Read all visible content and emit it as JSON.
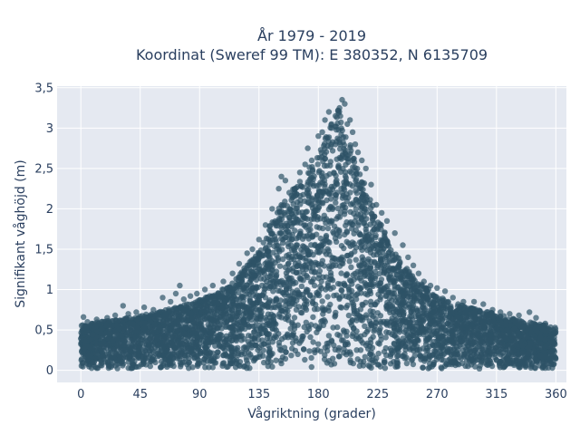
{
  "chart_data": {
    "type": "scatter",
    "title": [
      "År 1979 - 2019",
      "Koordinat (Sweref 99 TM): E 380352, N 6135709"
    ],
    "xlabel": "Vågriktning (grader)",
    "ylabel": "Signifikant våghöjd (m)",
    "xlim": [
      -18,
      368
    ],
    "ylim": [
      -0.15,
      3.52
    ],
    "xticks": [
      0,
      45,
      90,
      135,
      180,
      225,
      270,
      315,
      360
    ],
    "xtick_labels": [
      "0",
      "45",
      "90",
      "135",
      "180",
      "225",
      "270",
      "315",
      "360"
    ],
    "yticks": [
      0,
      0.5,
      1,
      1.5,
      2,
      2.5,
      3,
      3.5
    ],
    "ytick_labels": [
      "0",
      "0,5",
      "1",
      "1,5",
      "2",
      "2,5",
      "3",
      "3,5"
    ],
    "grid": true,
    "legend": "none",
    "series": [
      {
        "color": "#2e5266",
        "envelope": {
          "direction_deg": [
            0,
            15,
            30,
            45,
            60,
            75,
            90,
            105,
            120,
            135,
            150,
            165,
            180,
            195,
            210,
            225,
            240,
            255,
            270,
            285,
            300,
            315,
            330,
            345,
            360
          ],
          "max_height_m": [
            0.58,
            0.62,
            0.66,
            0.7,
            0.75,
            0.82,
            0.9,
            1.0,
            1.22,
            1.55,
            2.1,
            2.4,
            2.75,
            3.35,
            2.6,
            1.95,
            1.45,
            1.15,
            0.95,
            0.85,
            0.78,
            0.72,
            0.65,
            0.6,
            0.55
          ],
          "min_height_m": [
            0.02,
            0.02,
            0.02,
            0.02,
            0.02,
            0.02,
            0.02,
            0.02,
            0.02,
            0.02,
            0.02,
            0.02,
            0.02,
            0.02,
            0.02,
            0.02,
            0.02,
            0.02,
            0.02,
            0.02,
            0.02,
            0.02,
            0.02,
            0.02,
            0.02
          ]
        },
        "points": [
          [
            2,
            0.66
          ],
          [
            5,
            0.6
          ],
          [
            12,
            0.63
          ],
          [
            20,
            0.65
          ],
          [
            26,
            0.68
          ],
          [
            32,
            0.8
          ],
          [
            36,
            0.7
          ],
          [
            42,
            0.72
          ],
          [
            48,
            0.78
          ],
          [
            55,
            0.75
          ],
          [
            62,
            0.9
          ],
          [
            68,
            0.85
          ],
          [
            72,
            0.95
          ],
          [
            75,
            1.05
          ],
          [
            78,
            0.88
          ],
          [
            83,
            0.92
          ],
          [
            88,
            0.95
          ],
          [
            94,
            1.0
          ],
          [
            100,
            1.05
          ],
          [
            108,
            1.1
          ],
          [
            115,
            1.2
          ],
          [
            120,
            1.32
          ],
          [
            126,
            1.45
          ],
          [
            130,
            1.5
          ],
          [
            135,
            1.62
          ],
          [
            140,
            1.8
          ],
          [
            145,
            2.0
          ],
          [
            150,
            2.25
          ],
          [
            152,
            2.4
          ],
          [
            155,
            2.35
          ],
          [
            158,
            2.2
          ],
          [
            162,
            2.25
          ],
          [
            166,
            2.45
          ],
          [
            170,
            2.55
          ],
          [
            172,
            2.75
          ],
          [
            175,
            2.6
          ],
          [
            180,
            2.9
          ],
          [
            183,
            2.95
          ],
          [
            185,
            3.1
          ],
          [
            188,
            3.2
          ],
          [
            190,
            3.0
          ],
          [
            193,
            3.15
          ],
          [
            196,
            3.25
          ],
          [
            198,
            3.35
          ],
          [
            200,
            3.3
          ],
          [
            202,
            3.05
          ],
          [
            204,
            3.1
          ],
          [
            206,
            2.95
          ],
          [
            208,
            2.8
          ],
          [
            210,
            2.7
          ],
          [
            213,
            2.6
          ],
          [
            216,
            2.5
          ],
          [
            220,
            2.3
          ],
          [
            224,
            2.05
          ],
          [
            228,
            1.95
          ],
          [
            232,
            1.85
          ],
          [
            238,
            1.7
          ],
          [
            244,
            1.55
          ],
          [
            248,
            1.4
          ],
          [
            252,
            1.3
          ],
          [
            256,
            1.2
          ],
          [
            260,
            1.1
          ],
          [
            265,
            1.05
          ],
          [
            270,
            1.02
          ],
          [
            276,
            0.98
          ],
          [
            282,
            0.9
          ],
          [
            290,
            0.85
          ],
          [
            298,
            0.85
          ],
          [
            305,
            0.82
          ],
          [
            312,
            0.75
          ],
          [
            318,
            0.72
          ],
          [
            325,
            0.7
          ],
          [
            332,
            0.68
          ],
          [
            340,
            0.72
          ],
          [
            345,
            0.65
          ],
          [
            352,
            0.58
          ],
          [
            358,
            0.5
          ]
        ]
      }
    ]
  }
}
